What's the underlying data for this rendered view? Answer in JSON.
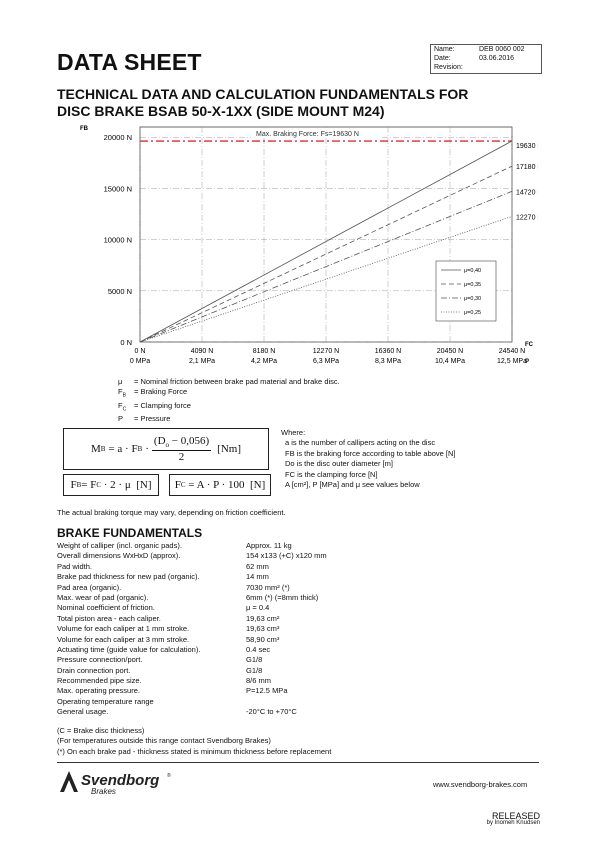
{
  "header": {
    "title": "DATA SHEET",
    "meta": [
      {
        "key": "Name:",
        "value": "DEB 0060 002"
      },
      {
        "key": "Date:",
        "value": "03.06.2016"
      },
      {
        "key": "Revision:",
        "value": ""
      }
    ],
    "subtitle_line1": "TECHNICAL DATA AND CALCULATION FUNDAMENTALS FOR",
    "subtitle_line2": "DISC BRAKE BSAB 50-X-1XX (SIDE MOUNT M24)"
  },
  "chart_data": {
    "type": "line",
    "y_axis_symbol": "FB",
    "x_axis_symbol": "FC",
    "x_axis_symbol2": "P",
    "ylim": [
      0,
      21000
    ],
    "xlim": [
      0,
      24540
    ],
    "y_ticks": [
      0,
      5000,
      10000,
      15000,
      20000
    ],
    "y_tick_labels": [
      "0 N",
      "5000 N",
      "10000 N",
      "15000 N",
      "20000 N"
    ],
    "x_ticks": [
      0,
      4090,
      8180,
      12270,
      16360,
      20450,
      24540
    ],
    "x_tick_labels": [
      "0 N",
      "4090 N",
      "8180 N",
      "12270 N",
      "16360 N",
      "20450 N",
      "24540 N"
    ],
    "x_tick_labels2": [
      "0 MPa",
      "2,1 MPa",
      "4,2 MPa",
      "6,3 MPa",
      "8,3 MPa",
      "10,4 MPa",
      "12,5 MPa"
    ],
    "max_line": {
      "value": 19630,
      "label": "Max. Braking Force: Fs=19630 N",
      "color": "#d03030"
    },
    "end_labels": [
      "19630 N",
      "17180 N",
      "14720 N",
      "12270 N"
    ],
    "series": [
      {
        "name": "μ=0,40",
        "x": [
          0,
          24540
        ],
        "y": [
          0,
          19630
        ],
        "dash": "solid"
      },
      {
        "name": "μ=0,35",
        "x": [
          0,
          24540
        ],
        "y": [
          0,
          17180
        ],
        "dash": "dash"
      },
      {
        "name": "μ=0,30",
        "x": [
          0,
          24540
        ],
        "y": [
          0,
          14720
        ],
        "dash": "dashdot"
      },
      {
        "name": "μ=0,25",
        "x": [
          0,
          24540
        ],
        "y": [
          0,
          12270
        ],
        "dash": "dot"
      }
    ],
    "grid": true,
    "legend_position": "right"
  },
  "symbols": [
    {
      "sym": "μ",
      "desc": "= Nominal friction between brake pad material and brake disc."
    },
    {
      "sym": "FB",
      "desc": "= Braking Force"
    },
    {
      "sym": "FC",
      "desc": "= Clamping force"
    },
    {
      "sym": "P",
      "desc": "= Pressure"
    }
  ],
  "formulas": {
    "mb_lhs": "M",
    "mb_sub": "B",
    "mb_eq": "= a · F",
    "mb_fsub": "B",
    "mb_num": "(D",
    "mb_num_sub": "o",
    "mb_num_rest": " − 0,056)",
    "mb_den": "2",
    "mb_unit": "[Nm]",
    "fb_text": "F",
    "fb_sub": "B",
    "fb_eq": "= F",
    "fb_sub2": "C",
    "fb_rest": " · 2 · μ  [N]",
    "fc_text": "F",
    "fc_sub": "C",
    "fc_rest": " = A · P · 100  [N]"
  },
  "where": {
    "title": "Where:",
    "lines": [
      "a is the number of callipers acting on the disc",
      "FB is the braking force according to table above [N]",
      "Do is the disc outer diameter [m]",
      "FC is the clamping force [N]",
      "A [cm²], P [MPa] and μ see values below"
    ]
  },
  "note": "The actual braking torque may vary, depending on friction coefficient.",
  "fundamentals": {
    "title": "BRAKE FUNDAMENTALS",
    "rows": [
      {
        "k": "Weight of calliper (incl. organic pads).",
        "v": "Approx. 11 kg"
      },
      {
        "k": "Overall dimensions WxHxD (approx).",
        "v": "154 x133 (+C) x120 mm"
      },
      {
        "k": "Pad width.",
        "v": "62 mm"
      },
      {
        "k": "Brake pad thickness for new pad (organic).",
        "v": "14 mm"
      },
      {
        "k": "Pad area (organic).",
        "v": "7030 mm² (*)"
      },
      {
        "k": "Max. wear of pad (organic).",
        "v": "6mm (*) (=8mm thick)"
      },
      {
        "k": "Nominal coefficient of friction.",
        "v": "μ = 0.4"
      },
      {
        "k": "Total piston area - each caliper.",
        "v": "19,63 cm²"
      },
      {
        "k": "Volume for each caliper at 1 mm stroke.",
        "v": "19,63 cm³"
      },
      {
        "k": "Volume for each caliper at 3 mm stroke.",
        "v": "58,90 cm³"
      },
      {
        "k": "Actuating time (guide value for calculation).",
        "v": "0.4 sec"
      },
      {
        "k": "Pressure connection/port.",
        "v": "G1/8"
      },
      {
        "k": "Drain connection port.",
        "v": "G1/8"
      },
      {
        "k": "Recommended pipe size.",
        "v": "8/6 mm"
      },
      {
        "k": "Max. operating pressure.",
        "v": "P=12.5 MPa"
      },
      {
        "k": "Operating temperature range",
        "v": ""
      },
      {
        "k": "General usage.",
        "v": "-20°C to +70°C"
      }
    ]
  },
  "footnotes": [
    "(C = Brake disc thickness)",
    "(For temperatures outside this range contact Svendborg Brakes)",
    "(*) On each brake pad - thickness stated is minimum thickness before replacement"
  ],
  "footer": {
    "logo_text": "Svendborg",
    "logo_sub": "Brakes",
    "logo_mark": "®",
    "website": "www.svendborg-brakes.com",
    "released": "RELEASED",
    "released_by": "by Inomeh Knudsen"
  }
}
